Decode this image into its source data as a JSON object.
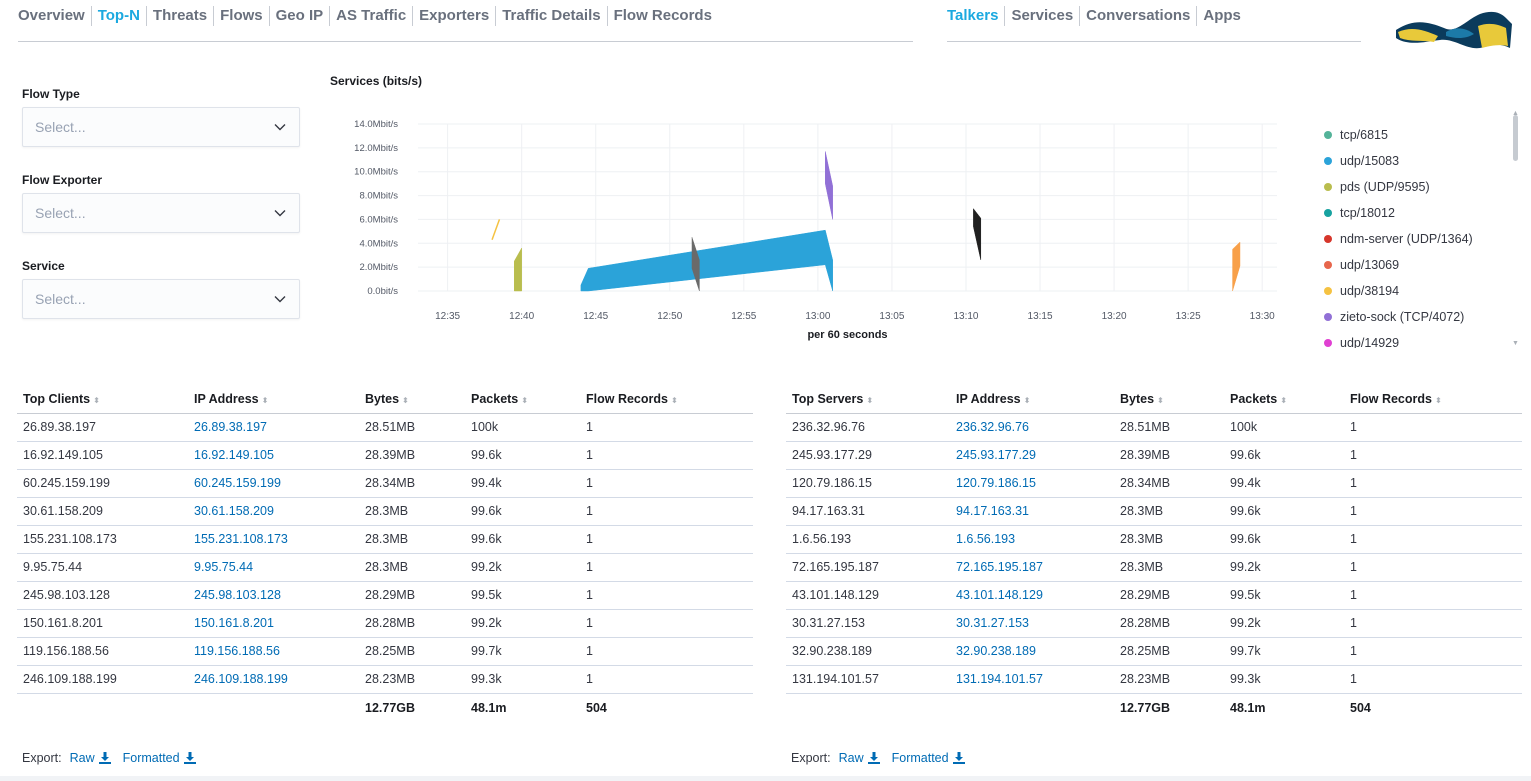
{
  "nav_left": [
    "Overview",
    "Top-N",
    "Threats",
    "Flows",
    "Geo IP",
    "AS Traffic",
    "Exporters",
    "Traffic Details",
    "Flow Records"
  ],
  "nav_left_active": 1,
  "nav_right": [
    "Talkers",
    "Services",
    "Conversations",
    "Apps"
  ],
  "nav_right_active": 0,
  "filters": {
    "flow_type": {
      "label": "Flow Type",
      "placeholder": "Select..."
    },
    "flow_exporter": {
      "label": "Flow Exporter",
      "placeholder": "Select..."
    },
    "service": {
      "label": "Service",
      "placeholder": "Select..."
    }
  },
  "chart_data": {
    "type": "area",
    "title": "Services (bits/s)",
    "xlabel": "per 60 seconds",
    "ylabel": "",
    "ylim": [
      0,
      14.0
    ],
    "xlim": [
      "12:33",
      "13:31"
    ],
    "x_ticks": [
      "12:35",
      "12:40",
      "12:45",
      "12:50",
      "12:55",
      "13:00",
      "13:05",
      "13:10",
      "13:15",
      "13:20",
      "13:25",
      "13:30"
    ],
    "y_ticks": [
      "0.0bit/s",
      "2.0Mbit/s",
      "4.0Mbit/s",
      "6.0Mbit/s",
      "8.0Mbit/s",
      "10.0Mbit/s",
      "12.0Mbit/s",
      "14.0Mbit/s"
    ],
    "grid": true,
    "legend_position": "right",
    "series": [
      {
        "name": "tcp/6815",
        "color": "#54b399",
        "points": []
      },
      {
        "name": "udp/15083",
        "color": "#2ba3d9",
        "points": [
          {
            "x": "12:44",
            "y0": 0,
            "y1": 0.5
          },
          {
            "x": "12:44.5",
            "y0": 0,
            "y1": 1.9
          },
          {
            "x": "13:00.5",
            "y0": 2.2,
            "y1": 5.1
          },
          {
            "x": "13:01",
            "y0": 0,
            "y1": 2.6
          }
        ]
      },
      {
        "name": "pds (UDP/9595)",
        "color": "#b9bd4e",
        "points": [
          {
            "x": "12:39.5",
            "y0": 0,
            "y1": 2.5
          },
          {
            "x": "12:40",
            "y0": 0,
            "y1": 3.6
          }
        ]
      },
      {
        "name": "tcp/18012",
        "color": "#17a2a0",
        "points": []
      },
      {
        "name": "ndm-server (UDP/1364)",
        "color": "#d6362b",
        "points": []
      },
      {
        "name": "udp/13069",
        "color": "#e7664c",
        "points": []
      },
      {
        "name": "udp/38194",
        "color": "#f5c242",
        "points": [
          {
            "x": "12:38",
            "y": 4.3
          },
          {
            "x": "12:38.5",
            "y": 6.0
          }
        ]
      },
      {
        "name": "zieto-sock (TCP/4072)",
        "color": "#9170d6",
        "points": [
          {
            "x": "13:00.5",
            "y0": 9.0,
            "y1": 11.7
          },
          {
            "x": "13:01",
            "y0": 6.0,
            "y1": 8.8
          }
        ]
      },
      {
        "name": "udp/14929",
        "color": "#e040d2",
        "points": []
      },
      {
        "name": "",
        "color": "#6a6a6a",
        "points": [
          {
            "x": "12:51.5",
            "y0": 1.9,
            "y1": 4.5
          },
          {
            "x": "12:52",
            "y0": 0,
            "y1": 2.6
          }
        ]
      },
      {
        "name": "",
        "color": "#202020",
        "points": [
          {
            "x": "13:10.5",
            "y0": 5.4,
            "y1": 6.9
          },
          {
            "x": "13:11",
            "y0": 2.6,
            "y1": 6.1
          }
        ]
      },
      {
        "name": "",
        "color": "#f8a049",
        "points": [
          {
            "x": "13:28",
            "y0": 0,
            "y1": 3.5
          },
          {
            "x": "13:28.5",
            "y0": 2.1,
            "y1": 4.1
          }
        ]
      }
    ]
  },
  "legend_items": [
    {
      "name": "tcp/6815",
      "color": "#54b399"
    },
    {
      "name": "udp/15083",
      "color": "#2ba3d9"
    },
    {
      "name": "pds (UDP/9595)",
      "color": "#b9bd4e"
    },
    {
      "name": "tcp/18012",
      "color": "#17a2a0"
    },
    {
      "name": "ndm-server (UDP/1364)",
      "color": "#d6362b"
    },
    {
      "name": "udp/13069",
      "color": "#e7664c"
    },
    {
      "name": "udp/38194",
      "color": "#f5c242"
    },
    {
      "name": "zieto-sock (TCP/4072)",
      "color": "#9170d6"
    },
    {
      "name": "udp/14929",
      "color": "#e040d2"
    }
  ],
  "clients": {
    "headers": [
      "Top Clients",
      "IP Address",
      "Bytes",
      "Packets",
      "Flow Records"
    ],
    "rows": [
      [
        "26.89.38.197",
        "26.89.38.197",
        "28.51MB",
        "100k",
        "1"
      ],
      [
        "16.92.149.105",
        "16.92.149.105",
        "28.39MB",
        "99.6k",
        "1"
      ],
      [
        "60.245.159.199",
        "60.245.159.199",
        "28.34MB",
        "99.4k",
        "1"
      ],
      [
        "30.61.158.209",
        "30.61.158.209",
        "28.3MB",
        "99.6k",
        "1"
      ],
      [
        "155.231.108.173",
        "155.231.108.173",
        "28.3MB",
        "99.6k",
        "1"
      ],
      [
        "9.95.75.44",
        "9.95.75.44",
        "28.3MB",
        "99.2k",
        "1"
      ],
      [
        "245.98.103.128",
        "245.98.103.128",
        "28.29MB",
        "99.5k",
        "1"
      ],
      [
        "150.161.8.201",
        "150.161.8.201",
        "28.28MB",
        "99.2k",
        "1"
      ],
      [
        "119.156.188.56",
        "119.156.188.56",
        "28.25MB",
        "99.7k",
        "1"
      ],
      [
        "246.109.188.199",
        "246.109.188.199",
        "28.23MB",
        "99.3k",
        "1"
      ]
    ],
    "totals": [
      "",
      "",
      "12.77GB",
      "48.1m",
      "504"
    ]
  },
  "servers": {
    "headers": [
      "Top Servers",
      "IP Address",
      "Bytes",
      "Packets",
      "Flow Records"
    ],
    "rows": [
      [
        "236.32.96.76",
        "236.32.96.76",
        "28.51MB",
        "100k",
        "1"
      ],
      [
        "245.93.177.29",
        "245.93.177.29",
        "28.39MB",
        "99.6k",
        "1"
      ],
      [
        "120.79.186.15",
        "120.79.186.15",
        "28.34MB",
        "99.4k",
        "1"
      ],
      [
        "94.17.163.31",
        "94.17.163.31",
        "28.3MB",
        "99.6k",
        "1"
      ],
      [
        "1.6.56.193",
        "1.6.56.193",
        "28.3MB",
        "99.6k",
        "1"
      ],
      [
        "72.165.195.187",
        "72.165.195.187",
        "28.3MB",
        "99.2k",
        "1"
      ],
      [
        "43.101.148.129",
        "43.101.148.129",
        "28.29MB",
        "99.5k",
        "1"
      ],
      [
        "30.31.27.153",
        "30.31.27.153",
        "28.28MB",
        "99.2k",
        "1"
      ],
      [
        "32.90.238.189",
        "32.90.238.189",
        "28.25MB",
        "99.7k",
        "1"
      ],
      [
        "131.194.101.57",
        "131.194.101.57",
        "28.23MB",
        "99.3k",
        "1"
      ]
    ],
    "totals": [
      "",
      "",
      "12.77GB",
      "48.1m",
      "504"
    ]
  },
  "export": {
    "label": "Export:",
    "raw": "Raw",
    "formatted": "Formatted"
  },
  "icons": {
    "sort": "sort-icon",
    "download": "download-icon",
    "chevron": "chevron-down-icon",
    "logo": "elastiflow-logo"
  }
}
